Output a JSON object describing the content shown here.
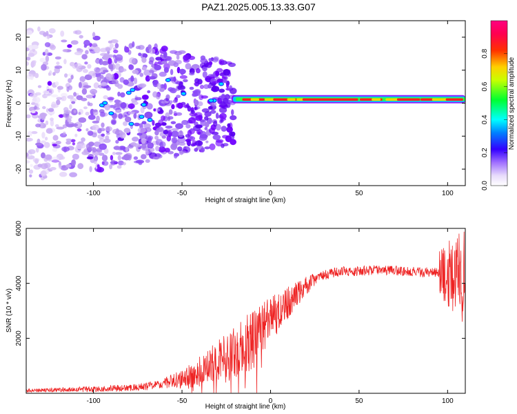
{
  "title": "PAZ1.2025.005.13.33.G07",
  "colors": {
    "snr_line": "#ee2222",
    "spectrogram_low": "#d9c8f5",
    "spectrogram_mid": "#7a00ff",
    "frame": "#000000"
  },
  "chart_data": [
    {
      "type": "heatmap",
      "title": "PAZ1.2025.005.13.33.G07",
      "xlabel": "Height of straight line (km)",
      "ylabel": "Frequency (Hz)",
      "xlim": [
        -138,
        110
      ],
      "ylim": [
        -25,
        25
      ],
      "xticks": [
        -100,
        -50,
        0,
        50,
        100
      ],
      "yticks": [
        -20,
        -10,
        0,
        10,
        20
      ],
      "colorbar": {
        "label": "Normalized spectral amplitude",
        "range": [
          0.0,
          1.0
        ],
        "ticks": [
          "0.0",
          "0.2",
          "0.4",
          "0.6",
          "0.8"
        ],
        "colormap": "rainbow (white-violet-blue-cyan-green-yellow-red-magenta)"
      },
      "features": {
        "diffuse_noise_region_km": [
          -138,
          -25
        ],
        "main_line_start_km": -22,
        "main_line_frequency_hz": 1,
        "main_line_amplitude": 0.85
      }
    },
    {
      "type": "line",
      "xlabel": "Height of straight line (km)",
      "ylabel": "SNR (10 * v/v)",
      "xlim": [
        -138,
        110
      ],
      "ylim": [
        0,
        6000
      ],
      "xticks": [
        -100,
        -50,
        0,
        50,
        100
      ],
      "yticks": [
        2000,
        4000,
        6000
      ],
      "series": [
        {
          "color": "#ee2222",
          "x": [
            -138,
            -120,
            -100,
            -80,
            -70,
            -60,
            -50,
            -45,
            -40,
            -35,
            -30,
            -25,
            -20,
            -15,
            -10,
            -5,
            0,
            5,
            10,
            15,
            20,
            25,
            30,
            40,
            50,
            60,
            70,
            80,
            90,
            95,
            100,
            105,
            110
          ],
          "y": [
            100,
            120,
            150,
            200,
            250,
            350,
            500,
            600,
            800,
            1000,
            1200,
            1350,
            1500,
            1700,
            2000,
            2300,
            2700,
            3000,
            3300,
            3600,
            3900,
            4150,
            4300,
            4450,
            4450,
            4480,
            4480,
            4420,
            4400,
            4380,
            4350,
            4300,
            4200
          ]
        }
      ]
    }
  ]
}
